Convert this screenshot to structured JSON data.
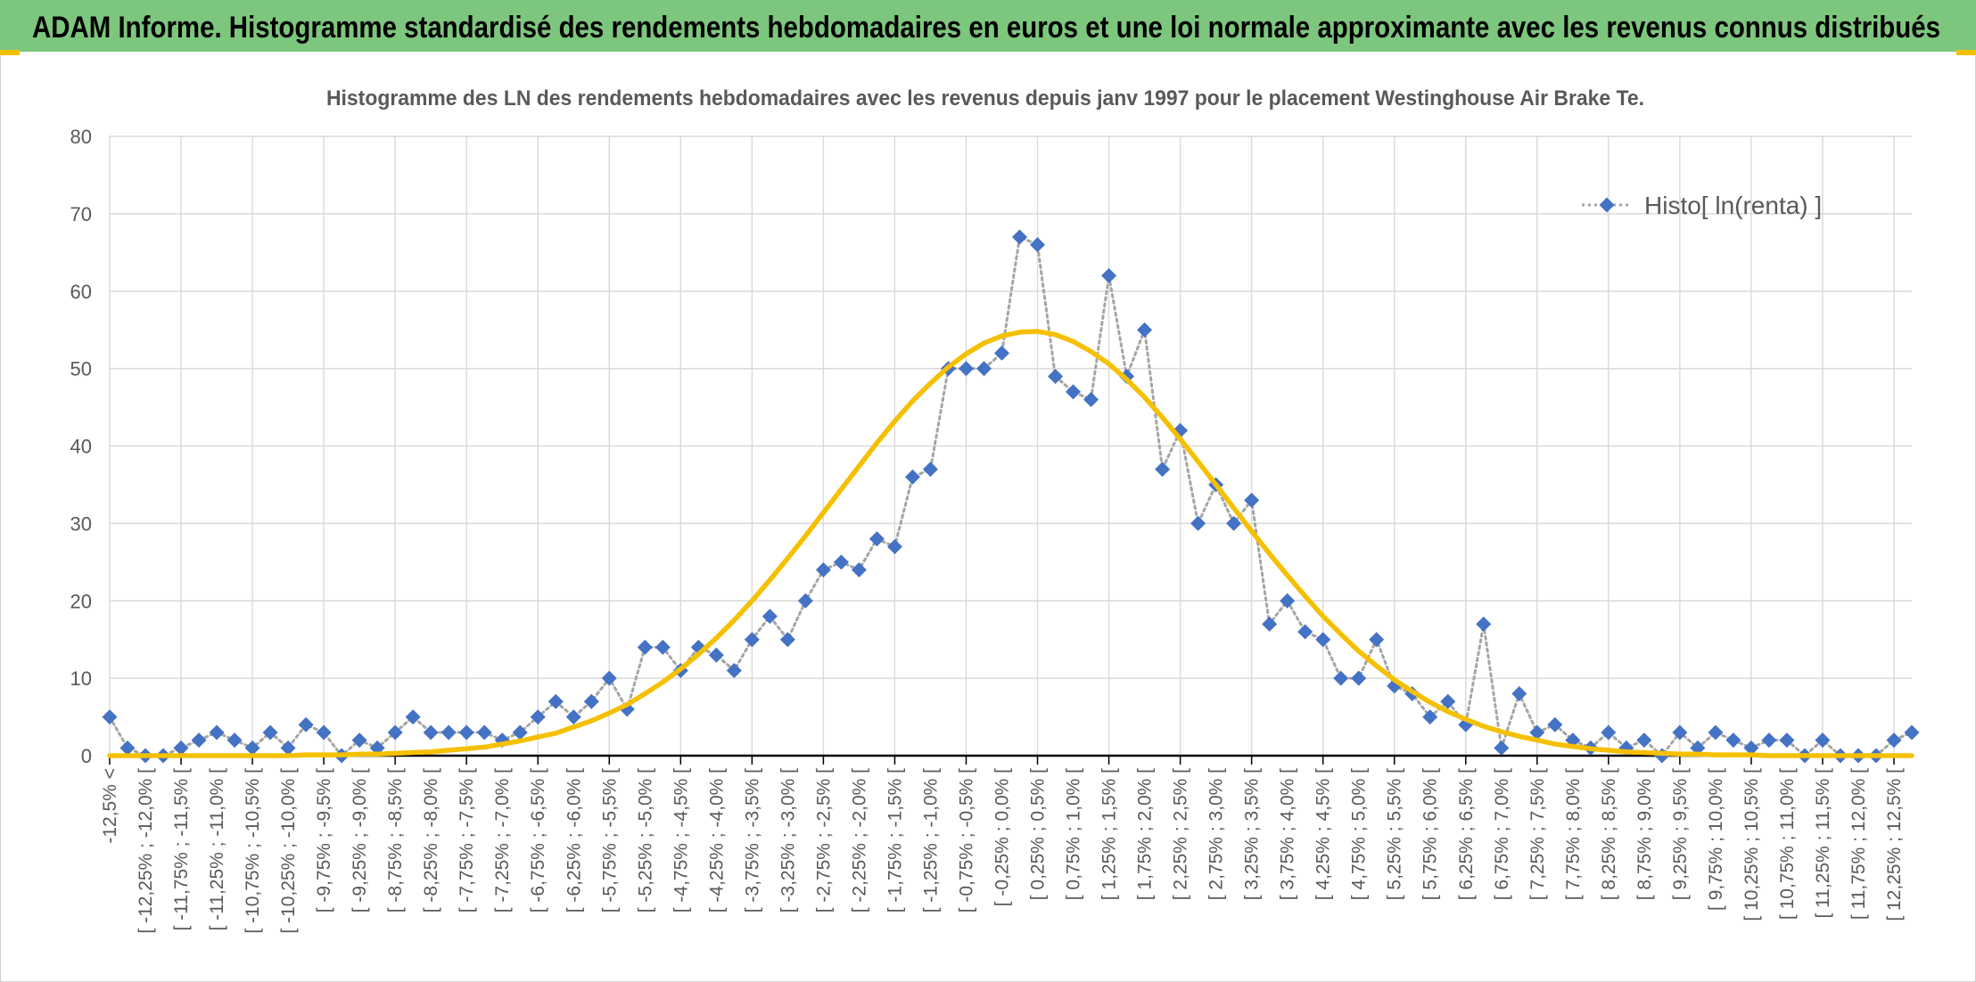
{
  "chart_data": {
    "type": "line",
    "header": "ADAM Informe. Histogramme standardisé des rendements hebdomadaires en euros et une loi normale approximante avec les revenus connus distribués",
    "title": "Histogramme des LN des rendements hebdomadaires avec les revenus depuis janv 1997 pour le placement Westinghouse Air Brake Te.",
    "categories": [
      "-12,5% <",
      null,
      "[ -12,25% ; -12,0% [",
      null,
      "[ -11,75% ; -11,5% [",
      null,
      "[ -11,25% ; -11,0% [",
      null,
      "[ -10,75% ; -10,5% [",
      null,
      "[ -10,25% ; -10,0% [",
      null,
      "[ -9,75% ; -9,5% [",
      null,
      "[ -9,25% ; -9,0% [",
      null,
      "[ -8,75% ; -8,5% [",
      null,
      "[ -8,25% ; -8,0% [",
      null,
      "[ -7,75% ; -7,5% [",
      null,
      "[ -7,25% ; -7,0% [",
      null,
      "[ -6,75% ; -6,5% [",
      null,
      "[ -6,25% ; -6,0% [",
      null,
      "[ -5,75% ; -5,5% [",
      null,
      "[ -5,25% ; -5,0% [",
      null,
      "[ -4,75% ; -4,5% [",
      null,
      "[ -4,25% ; -4,0% [",
      null,
      "[ -3,75% ; -3,5% [",
      null,
      "[ -3,25% ; -3,0% [",
      null,
      "[ -2,75% ; -2,5% [",
      null,
      "[ -2,25% ; -2,0% [",
      null,
      "[ -1,75% ; -1,5% [",
      null,
      "[ -1,25% ; -1,0% [",
      null,
      "[ -0,75% ; -0,5% [",
      null,
      "[ -0,25% ; 0,0% [",
      null,
      "[ 0,25% ; 0,5% [",
      null,
      "[ 0,75% ; 1,0% [",
      null,
      "[ 1,25% ; 1,5% [",
      null,
      "[ 1,75% ; 2,0% [",
      null,
      "[ 2,25% ; 2,5% [",
      null,
      "[ 2,75% ; 3,0% [",
      null,
      "[ 3,25% ; 3,5% [",
      null,
      "[ 3,75% ; 4,0% [",
      null,
      "[ 4,25% ; 4,5% [",
      null,
      "[ 4,75% ; 5,0% [",
      null,
      "[ 5,25% ; 5,5% [",
      null,
      "[ 5,75% ; 6,0% [",
      null,
      "[ 6,25% ; 6,5% [",
      null,
      "[ 6,75% ; 7,0% [",
      null,
      "[ 7,25% ; 7,5% [",
      null,
      "[ 7,75% ; 8,0% [",
      null,
      "[ 8,25% ; 8,5% [",
      null,
      "[ 8,75% ; 9,0% [",
      null,
      "[ 9,25% ; 9,5% [",
      null,
      "[ 9,75% ; 10,0% [",
      null,
      "[ 10,25% ; 10,5% [",
      null,
      "[ 10,75% ; 11,0% [",
      null,
      "[ 11,25% ; 11,5% [",
      null,
      "[ 11,75% ; 12,0% [",
      null,
      "[ 12,25% ; 12,5% [",
      null
    ],
    "series": [
      {
        "name": "Histo[ ln(renta) ]",
        "color": "#4472c4",
        "line_color": "#a5a5a5",
        "line_style": "dotted",
        "marker": "diamond",
        "values": [
          5,
          1,
          0,
          0,
          1,
          2,
          3,
          2,
          1,
          3,
          1,
          4,
          3,
          0,
          2,
          1,
          3,
          5,
          3,
          3,
          3,
          3,
          2,
          3,
          5,
          7,
          5,
          7,
          10,
          6,
          14,
          14,
          11,
          14,
          13,
          11,
          15,
          18,
          15,
          20,
          24,
          25,
          24,
          28,
          27,
          36,
          37,
          50,
          50,
          50,
          52,
          67,
          66,
          49,
          47,
          46,
          62,
          49,
          55,
          37,
          42,
          30,
          35,
          30,
          33,
          17,
          20,
          16,
          15,
          10,
          10,
          15,
          9,
          8,
          5,
          7,
          4,
          17,
          1,
          8,
          3,
          4,
          2,
          1,
          3,
          1,
          2,
          0,
          3,
          1,
          3,
          2,
          1,
          2,
          2,
          0,
          2,
          0,
          0,
          0,
          2,
          3
        ]
      },
      {
        "color": "#f5c000",
        "line_style": "solid",
        "marker": "none",
        "values": [
          0,
          0,
          0,
          0,
          0,
          0,
          0,
          0,
          0,
          0,
          0,
          0.1,
          0.1,
          0.1,
          0.2,
          0.2,
          0.3,
          0.4,
          0.5,
          0.7,
          0.9,
          1.1,
          1.5,
          1.9,
          2.4,
          2.9,
          3.7,
          4.5,
          5.5,
          6.6,
          8.0,
          9.5,
          11.2,
          13.1,
          15.2,
          17.5,
          20.0,
          22.7,
          25.5,
          28.4,
          31.4,
          34.4,
          37.4,
          40.4,
          43.2,
          45.8,
          48.1,
          50.2,
          51.9,
          53.3,
          54.2,
          54.7,
          54.8,
          54.4,
          53.5,
          52.2,
          50.6,
          48.6,
          46.3,
          43.7,
          40.9,
          38.0,
          35.0,
          32.0,
          29.0,
          26.1,
          23.3,
          20.6,
          18.0,
          15.7,
          13.5,
          11.6,
          9.8,
          8.3,
          6.9,
          5.7,
          4.7,
          3.8,
          3.1,
          2.5,
          2.0,
          1.5,
          1.2,
          0.9,
          0.7,
          0.5,
          0.4,
          0.3,
          0.2,
          0.2,
          0.1,
          0.1,
          0.1,
          0,
          0,
          0,
          0,
          0,
          0,
          0,
          0,
          0
        ]
      }
    ],
    "ylim": [
      0,
      80
    ],
    "yticks": [
      0,
      10,
      20,
      30,
      40,
      50,
      60,
      70,
      80
    ],
    "grid": true,
    "legend": "top-right"
  }
}
